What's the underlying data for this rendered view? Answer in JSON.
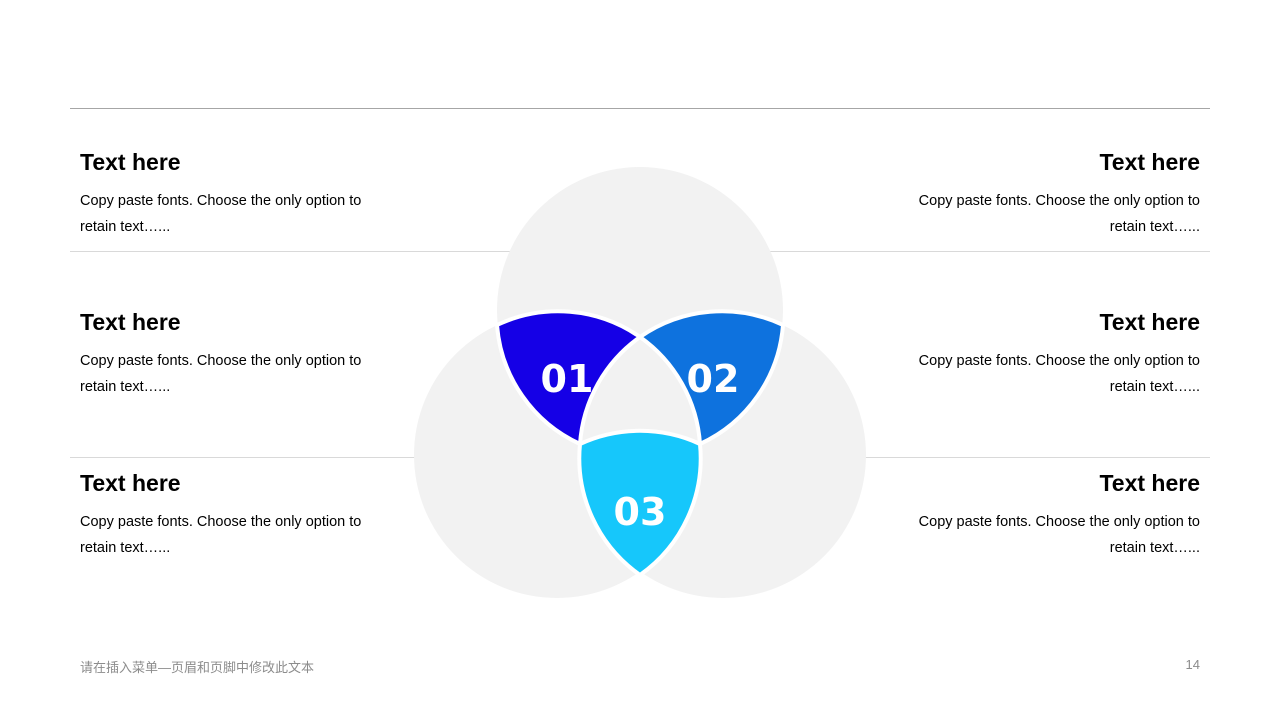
{
  "items": [
    {
      "num": "01",
      "color": "#1500e6"
    },
    {
      "num": "02",
      "color": "#0e72de"
    },
    {
      "num": "03",
      "color": "#16c7fb"
    }
  ],
  "left_blocks": [
    {
      "title": "Text here",
      "body": "Copy paste fonts. Choose the only option to retain text…..."
    },
    {
      "title": "Text here",
      "body": "Copy paste fonts. Choose the only option to retain text…..."
    },
    {
      "title": "Text here",
      "body": "Copy paste fonts. Choose the only option to retain text…..."
    }
  ],
  "right_blocks": [
    {
      "title": "Text here",
      "body": "Copy paste fonts. Choose the only option to retain text…..."
    },
    {
      "title": "Text here",
      "body": "Copy paste fonts. Choose the only option to retain text…..."
    },
    {
      "title": "Text here",
      "body": "Copy paste fonts. Choose the only option to retain text…..."
    }
  ],
  "footer": {
    "text": "请在插入菜单—页眉和页脚中修改此文本",
    "page": "14"
  },
  "colors": {
    "circle": "#f2f2f2",
    "divider": "#d9d9d9",
    "top_rule": "#a6a6a6"
  }
}
